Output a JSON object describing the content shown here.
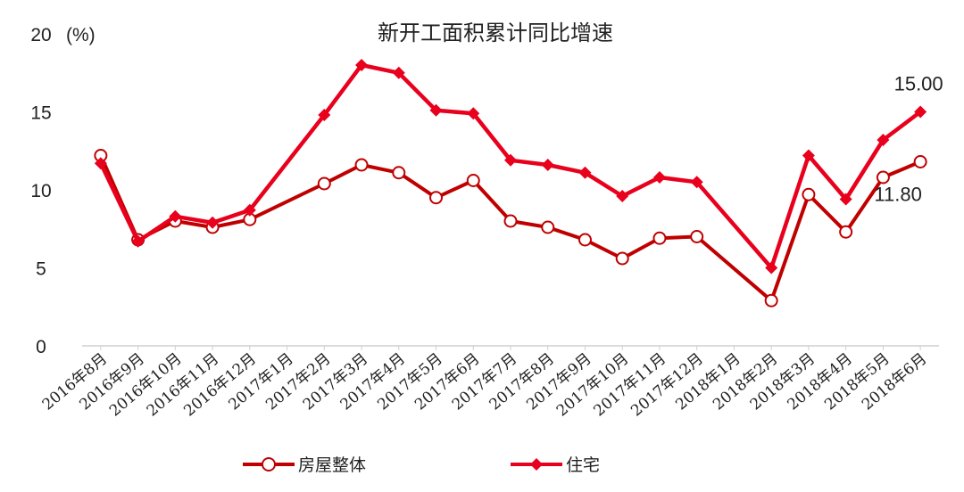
{
  "chart_data": {
    "type": "line",
    "title": "新开工面积累计同比增速",
    "ylabel": "(%)",
    "ylim": [
      0,
      20
    ],
    "yticks": [
      "0",
      "5",
      "10",
      "15",
      "20"
    ],
    "grid": false,
    "legend_position": "bottom",
    "categories": [
      "2016年8月",
      "2016年9月",
      "2016年10月",
      "2016年11月",
      "2016年12月",
      "2017年1月",
      "2017年2月",
      "2017年3月",
      "2017年4月",
      "2017年5月",
      "2017年6月",
      "2017年7月",
      "2017年8月",
      "2017年9月",
      "2017年10月",
      "2017年11月",
      "2017年12月",
      "2018年1月",
      "2018年2月",
      "2018年3月",
      "2018年4月",
      "2018年5月",
      "2018年6月"
    ],
    "series": [
      {
        "name": "房屋整体",
        "marker": "circle",
        "color": "#c00000",
        "values": [
          12.2,
          6.8,
          8.0,
          7.6,
          8.1,
          null,
          10.4,
          11.6,
          11.1,
          9.5,
          10.6,
          8.0,
          7.6,
          6.8,
          5.6,
          6.9,
          7.0,
          null,
          2.9,
          9.7,
          7.3,
          10.8,
          11.8
        ],
        "end_label": "11.80"
      },
      {
        "name": "住宅",
        "marker": "diamond",
        "color": "#e8001c",
        "values": [
          11.7,
          6.7,
          8.3,
          7.9,
          8.7,
          null,
          14.8,
          18.0,
          17.5,
          15.1,
          14.9,
          11.9,
          11.6,
          11.1,
          9.6,
          10.8,
          10.5,
          null,
          5.0,
          12.2,
          9.4,
          13.2,
          15.0
        ],
        "end_label": "15.00"
      }
    ]
  }
}
